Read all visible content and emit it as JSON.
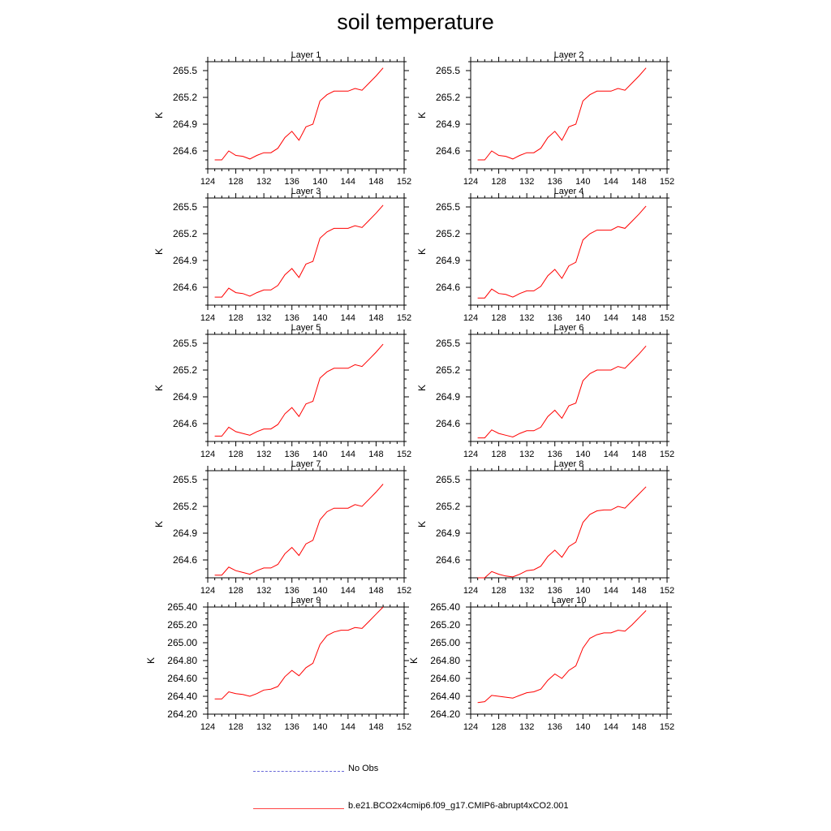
{
  "title": "soil temperature",
  "legend": {
    "items": [
      {
        "label": "No Obs",
        "color": "#6a6ad8",
        "style": "dashed"
      },
      {
        "label": "b.e21.BCO2x4cmip6.f09_g17.CMIP6-abrupt4xCO2.001",
        "color": "#ff0000",
        "style": "solid"
      }
    ]
  },
  "chart_data": [
    {
      "type": "line",
      "title": "Layer 1",
      "xlabel": "",
      "ylabel": "K",
      "xlim": [
        124,
        152
      ],
      "ylim": [
        264.4,
        265.6
      ],
      "xticks": [
        "124",
        "128",
        "132",
        "136",
        "140",
        "144",
        "148",
        "152"
      ],
      "yticks": [
        "264.6",
        "264.9",
        "265.2",
        "265.5"
      ],
      "series": [
        {
          "name": "b.e21.BCO2x4cmip6.f09_g17.CMIP6-abrupt4xCO2.001",
          "x": [
            125,
            126,
            127,
            128,
            129,
            130,
            131,
            132,
            133,
            134,
            135,
            136,
            137,
            138,
            139,
            140,
            141,
            142,
            143,
            144,
            145,
            146,
            147,
            148,
            149
          ],
          "values": [
            264.5,
            264.5,
            264.6,
            264.55,
            264.54,
            264.51,
            264.55,
            264.58,
            264.58,
            264.63,
            264.75,
            264.82,
            264.72,
            264.87,
            264.9,
            265.16,
            265.23,
            265.27,
            265.27,
            265.27,
            265.3,
            265.28,
            265.36,
            265.44,
            265.53
          ]
        }
      ]
    },
    {
      "type": "line",
      "title": "Layer 2",
      "xlabel": "",
      "ylabel": "K",
      "xlim": [
        124,
        152
      ],
      "ylim": [
        264.4,
        265.6
      ],
      "xticks": [
        "124",
        "128",
        "132",
        "136",
        "140",
        "144",
        "148",
        "152"
      ],
      "yticks": [
        "264.6",
        "264.9",
        "265.2",
        "265.5"
      ],
      "series": [
        {
          "name": "b.e21.BCO2x4cmip6.f09_g17.CMIP6-abrupt4xCO2.001",
          "x": [
            125,
            126,
            127,
            128,
            129,
            130,
            131,
            132,
            133,
            134,
            135,
            136,
            137,
            138,
            139,
            140,
            141,
            142,
            143,
            144,
            145,
            146,
            147,
            148,
            149
          ],
          "values": [
            264.5,
            264.5,
            264.6,
            264.55,
            264.54,
            264.51,
            264.55,
            264.58,
            264.58,
            264.63,
            264.75,
            264.82,
            264.72,
            264.87,
            264.9,
            265.16,
            265.23,
            265.27,
            265.27,
            265.27,
            265.3,
            265.28,
            265.36,
            265.44,
            265.53
          ]
        }
      ]
    },
    {
      "type": "line",
      "title": "Layer 3",
      "xlabel": "",
      "ylabel": "K",
      "xlim": [
        124,
        152
      ],
      "ylim": [
        264.4,
        265.6
      ],
      "xticks": [
        "124",
        "128",
        "132",
        "136",
        "140",
        "144",
        "148",
        "152"
      ],
      "yticks": [
        "264.6",
        "264.9",
        "265.2",
        "265.5"
      ],
      "series": [
        {
          "name": "b.e21.BCO2x4cmip6.f09_g17.CMIP6-abrupt4xCO2.001",
          "x": [
            125,
            126,
            127,
            128,
            129,
            130,
            131,
            132,
            133,
            134,
            135,
            136,
            137,
            138,
            139,
            140,
            141,
            142,
            143,
            144,
            145,
            146,
            147,
            148,
            149
          ],
          "values": [
            264.49,
            264.49,
            264.59,
            264.54,
            264.53,
            264.5,
            264.54,
            264.57,
            264.57,
            264.62,
            264.74,
            264.81,
            264.71,
            264.86,
            264.89,
            265.15,
            265.22,
            265.26,
            265.26,
            265.26,
            265.29,
            265.27,
            265.35,
            265.43,
            265.52
          ]
        }
      ]
    },
    {
      "type": "line",
      "title": "Layer 4",
      "xlabel": "",
      "ylabel": "K",
      "xlim": [
        124,
        152
      ],
      "ylim": [
        264.4,
        265.6
      ],
      "xticks": [
        "124",
        "128",
        "132",
        "136",
        "140",
        "144",
        "148",
        "152"
      ],
      "yticks": [
        "264.6",
        "264.9",
        "265.2",
        "265.5"
      ],
      "series": [
        {
          "name": "b.e21.BCO2x4cmip6.f09_g17.CMIP6-abrupt4xCO2.001",
          "x": [
            125,
            126,
            127,
            128,
            129,
            130,
            131,
            132,
            133,
            134,
            135,
            136,
            137,
            138,
            139,
            140,
            141,
            142,
            143,
            144,
            145,
            146,
            147,
            148,
            149
          ],
          "values": [
            264.48,
            264.48,
            264.58,
            264.53,
            264.52,
            264.49,
            264.53,
            264.56,
            264.56,
            264.61,
            264.73,
            264.8,
            264.7,
            264.84,
            264.88,
            265.13,
            265.2,
            265.24,
            265.24,
            265.24,
            265.28,
            265.26,
            265.34,
            265.42,
            265.51
          ]
        }
      ]
    },
    {
      "type": "line",
      "title": "Layer 5",
      "xlabel": "",
      "ylabel": "K",
      "xlim": [
        124,
        152
      ],
      "ylim": [
        264.4,
        265.6
      ],
      "xticks": [
        "124",
        "128",
        "132",
        "136",
        "140",
        "144",
        "148",
        "152"
      ],
      "yticks": [
        "264.6",
        "264.9",
        "265.2",
        "265.5"
      ],
      "series": [
        {
          "name": "b.e21.BCO2x4cmip6.f09_g17.CMIP6-abrupt4xCO2.001",
          "x": [
            125,
            126,
            127,
            128,
            129,
            130,
            131,
            132,
            133,
            134,
            135,
            136,
            137,
            138,
            139,
            140,
            141,
            142,
            143,
            144,
            145,
            146,
            147,
            148,
            149
          ],
          "values": [
            264.46,
            264.46,
            264.56,
            264.51,
            264.49,
            264.47,
            264.51,
            264.54,
            264.54,
            264.59,
            264.71,
            264.78,
            264.68,
            264.82,
            264.85,
            265.11,
            265.18,
            265.22,
            265.22,
            265.22,
            265.26,
            265.24,
            265.32,
            265.4,
            265.49
          ]
        }
      ]
    },
    {
      "type": "line",
      "title": "Layer 6",
      "xlabel": "",
      "ylabel": "K",
      "xlim": [
        124,
        152
      ],
      "ylim": [
        264.4,
        265.6
      ],
      "xticks": [
        "124",
        "128",
        "132",
        "136",
        "140",
        "144",
        "148",
        "152"
      ],
      "yticks": [
        "264.6",
        "264.9",
        "265.2",
        "265.5"
      ],
      "series": [
        {
          "name": "b.e21.BCO2x4cmip6.f09_g17.CMIP6-abrupt4xCO2.001",
          "x": [
            125,
            126,
            127,
            128,
            129,
            130,
            131,
            132,
            133,
            134,
            135,
            136,
            137,
            138,
            139,
            140,
            141,
            142,
            143,
            144,
            145,
            146,
            147,
            148,
            149
          ],
          "values": [
            264.44,
            264.44,
            264.53,
            264.49,
            264.47,
            264.45,
            264.49,
            264.52,
            264.52,
            264.56,
            264.68,
            264.75,
            264.66,
            264.8,
            264.83,
            265.08,
            265.16,
            265.2,
            265.2,
            265.2,
            265.24,
            265.22,
            265.3,
            265.38,
            265.47
          ]
        }
      ]
    },
    {
      "type": "line",
      "title": "Layer 7",
      "xlabel": "",
      "ylabel": "K",
      "xlim": [
        124,
        152
      ],
      "ylim": [
        264.4,
        265.6
      ],
      "xticks": [
        "124",
        "128",
        "132",
        "136",
        "140",
        "144",
        "148",
        "152"
      ],
      "yticks": [
        "264.6",
        "264.9",
        "265.2",
        "265.5"
      ],
      "series": [
        {
          "name": "b.e21.BCO2x4cmip6.f09_g17.CMIP6-abrupt4xCO2.001",
          "x": [
            125,
            126,
            127,
            128,
            129,
            130,
            131,
            132,
            133,
            134,
            135,
            136,
            137,
            138,
            139,
            140,
            141,
            142,
            143,
            144,
            145,
            146,
            147,
            148,
            149
          ],
          "values": [
            264.43,
            264.43,
            264.52,
            264.48,
            264.46,
            264.44,
            264.48,
            264.51,
            264.51,
            264.55,
            264.67,
            264.74,
            264.65,
            264.78,
            264.82,
            265.05,
            265.14,
            265.18,
            265.18,
            265.18,
            265.22,
            265.2,
            265.28,
            265.36,
            265.45
          ]
        }
      ]
    },
    {
      "type": "line",
      "title": "Layer 8",
      "xlabel": "",
      "ylabel": "K",
      "xlim": [
        124,
        152
      ],
      "ylim": [
        264.4,
        265.6
      ],
      "xticks": [
        "124",
        "128",
        "132",
        "136",
        "140",
        "144",
        "148",
        "152"
      ],
      "yticks": [
        "264.6",
        "264.9",
        "265.2",
        "265.5"
      ],
      "series": [
        {
          "name": "b.e21.BCO2x4cmip6.f09_g17.CMIP6-abrupt4xCO2.001",
          "x": [
            125,
            126,
            127,
            128,
            129,
            130,
            131,
            132,
            133,
            134,
            135,
            136,
            137,
            138,
            139,
            140,
            141,
            142,
            143,
            144,
            145,
            146,
            147,
            148,
            149
          ],
          "values": [
            264.4,
            264.4,
            264.47,
            264.44,
            264.42,
            264.41,
            264.44,
            264.48,
            264.49,
            264.53,
            264.64,
            264.71,
            264.63,
            264.75,
            264.8,
            265.02,
            265.11,
            265.15,
            265.16,
            265.16,
            265.2,
            265.18,
            265.26,
            265.34,
            265.42
          ]
        }
      ]
    },
    {
      "type": "line",
      "title": "Layer 9",
      "xlabel": "",
      "ylabel": "K",
      "xlim": [
        124,
        152
      ],
      "ylim": [
        264.2,
        265.4
      ],
      "xticks": [
        "124",
        "128",
        "132",
        "136",
        "140",
        "144",
        "148",
        "152"
      ],
      "yticks": [
        "264.20",
        "264.40",
        "264.60",
        "264.80",
        "265.00",
        "265.20",
        "265.40"
      ],
      "series": [
        {
          "name": "b.e21.BCO2x4cmip6.f09_g17.CMIP6-abrupt4xCO2.001",
          "x": [
            125,
            126,
            127,
            128,
            129,
            130,
            131,
            132,
            133,
            134,
            135,
            136,
            137,
            138,
            139,
            140,
            141,
            142,
            143,
            144,
            145,
            146,
            147,
            148,
            149
          ],
          "values": [
            264.37,
            264.37,
            264.45,
            264.43,
            264.42,
            264.4,
            264.43,
            264.47,
            264.48,
            264.51,
            264.62,
            264.69,
            264.63,
            264.72,
            264.77,
            264.98,
            265.08,
            265.12,
            265.14,
            265.14,
            265.17,
            265.16,
            265.24,
            265.32,
            265.4
          ]
        }
      ]
    },
    {
      "type": "line",
      "title": "Layer 10",
      "xlabel": "",
      "ylabel": "K",
      "xlim": [
        124,
        152
      ],
      "ylim": [
        264.2,
        265.4
      ],
      "xticks": [
        "124",
        "128",
        "132",
        "136",
        "140",
        "144",
        "148",
        "152"
      ],
      "yticks": [
        "264.20",
        "264.40",
        "264.60",
        "264.80",
        "265.00",
        "265.20",
        "265.40"
      ],
      "series": [
        {
          "name": "b.e21.BCO2x4cmip6.f09_g17.CMIP6-abrupt4xCO2.001",
          "x": [
            125,
            126,
            127,
            128,
            129,
            130,
            131,
            132,
            133,
            134,
            135,
            136,
            137,
            138,
            139,
            140,
            141,
            142,
            143,
            144,
            145,
            146,
            147,
            148,
            149
          ],
          "values": [
            264.33,
            264.34,
            264.41,
            264.4,
            264.39,
            264.38,
            264.41,
            264.44,
            264.45,
            264.48,
            264.58,
            264.65,
            264.6,
            264.69,
            264.74,
            264.94,
            265.05,
            265.09,
            265.11,
            265.11,
            265.14,
            265.13,
            265.2,
            265.28,
            265.36
          ]
        }
      ]
    }
  ]
}
